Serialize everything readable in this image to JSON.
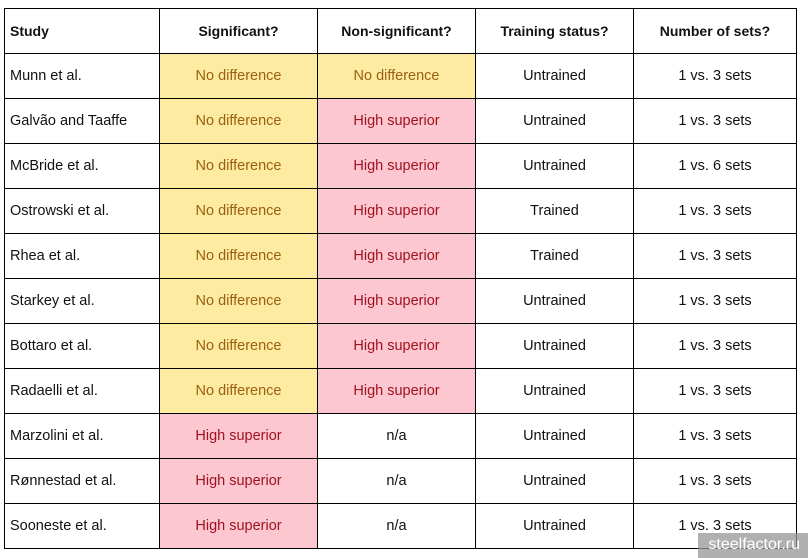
{
  "table": {
    "headers": {
      "study": "Study",
      "significant": "Significant?",
      "non_significant": "Non-significant?",
      "training_status": "Training status?",
      "number_of_sets": "Number of sets?"
    },
    "rows": [
      {
        "study": "Munn et al.",
        "significant": "No difference",
        "non_significant": "No difference",
        "training_status": "Untrained",
        "sets": "1 vs. 3 sets"
      },
      {
        "study": "Galvão and Taaffe",
        "significant": "No difference",
        "non_significant": "High superior",
        "training_status": "Untrained",
        "sets": "1 vs. 3 sets"
      },
      {
        "study": "McBride et al.",
        "significant": "No difference",
        "non_significant": "High superior",
        "training_status": "Untrained",
        "sets": "1 vs. 6 sets"
      },
      {
        "study": "Ostrowski et al.",
        "significant": "No difference",
        "non_significant": "High superior",
        "training_status": "Trained",
        "sets": "1 vs. 3 sets"
      },
      {
        "study": "Rhea et al.",
        "significant": "No difference",
        "non_significant": "High superior",
        "training_status": "Trained",
        "sets": "1 vs. 3 sets"
      },
      {
        "study": "Starkey et al.",
        "significant": "No difference",
        "non_significant": "High superior",
        "training_status": "Untrained",
        "sets": "1 vs. 3 sets"
      },
      {
        "study": "Bottaro et al.",
        "significant": "No difference",
        "non_significant": "High superior",
        "training_status": "Untrained",
        "sets": "1 vs. 3 sets"
      },
      {
        "study": "Radaelli et al.",
        "significant": "No difference",
        "non_significant": "High superior",
        "training_status": "Untrained",
        "sets": "1 vs. 3 sets"
      },
      {
        "study": "Marzolini et al.",
        "significant": "High superior",
        "non_significant": "n/a",
        "training_status": "Untrained",
        "sets": "1 vs. 3 sets"
      },
      {
        "study": "Rønnestad et al.",
        "significant": "High superior",
        "non_significant": "n/a",
        "training_status": "Untrained",
        "sets": "1 vs. 3 sets"
      },
      {
        "study": "Sooneste et al.",
        "significant": "High superior",
        "non_significant": "n/a",
        "training_status": "Untrained",
        "sets": "1 vs. 3 sets"
      }
    ]
  },
  "colors": {
    "no_difference_bg": "#fdeba2",
    "no_difference_text": "#9c6012",
    "high_superior_bg": "#fcc7d1",
    "high_superior_text": "#a0131e"
  },
  "watermark": {
    "text": "steelfactor.ru"
  }
}
